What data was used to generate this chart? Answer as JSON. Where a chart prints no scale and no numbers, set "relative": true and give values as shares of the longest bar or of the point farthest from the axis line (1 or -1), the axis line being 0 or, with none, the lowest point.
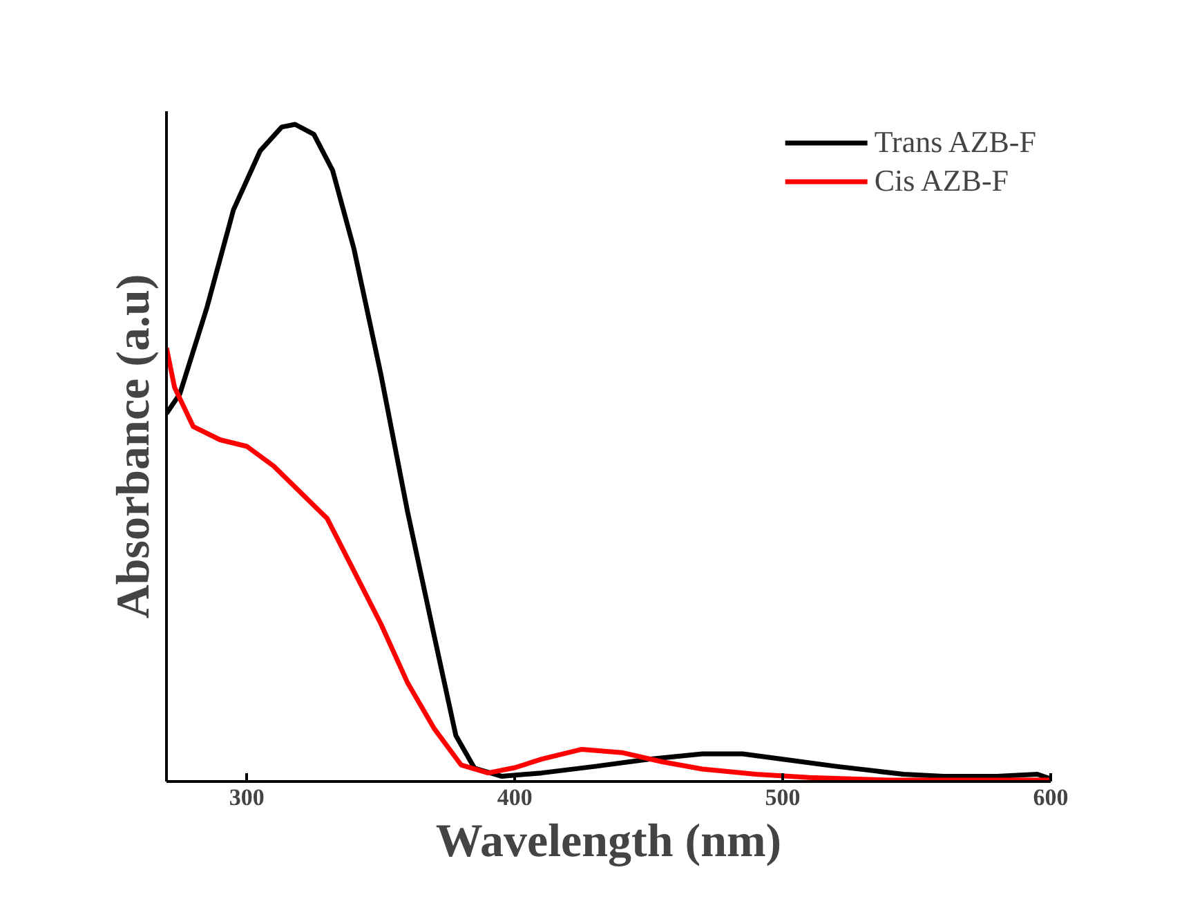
{
  "chart_data": {
    "type": "line",
    "xlabel": "Wavelength (nm)",
    "ylabel": "Absorbance (a.u)",
    "relative": true,
    "xlim": [
      270,
      600
    ],
    "xticks": [
      300,
      400,
      500,
      600
    ],
    "tick_labels": "x",
    "grid": false,
    "legend": "top right",
    "line_style": "solid",
    "series": [
      {
        "name": "Trans AZB-F",
        "color": "#000000",
        "x": [
          270,
          275,
          285,
          295,
          305,
          313,
          318,
          325,
          332,
          340,
          350,
          360,
          370,
          378,
          385,
          395,
          410,
          430,
          450,
          470,
          485,
          500,
          520,
          545,
          560,
          580,
          595,
          600
        ],
        "values": [
          0.56,
          0.59,
          0.72,
          0.87,
          0.96,
          0.996,
          1.0,
          0.985,
          0.93,
          0.81,
          0.62,
          0.41,
          0.22,
          0.07,
          0.02,
          0.008,
          0.013,
          0.023,
          0.034,
          0.042,
          0.042,
          0.034,
          0.023,
          0.011,
          0.008,
          0.008,
          0.011,
          0.004
        ]
      },
      {
        "name": "Cis AZB-F",
        "color": "#ff0000",
        "x": [
          270,
          273,
          280,
          290,
          300,
          310,
          320,
          330,
          340,
          350,
          360,
          370,
          380,
          390,
          400,
          410,
          425,
          440,
          455,
          470,
          490,
          510,
          540,
          570,
          600
        ],
        "values": [
          0.66,
          0.6,
          0.54,
          0.52,
          0.51,
          0.48,
          0.44,
          0.4,
          0.32,
          0.24,
          0.15,
          0.08,
          0.025,
          0.013,
          0.021,
          0.034,
          0.049,
          0.044,
          0.03,
          0.019,
          0.011,
          0.006,
          0.002,
          0.002,
          0.002
        ]
      }
    ]
  }
}
